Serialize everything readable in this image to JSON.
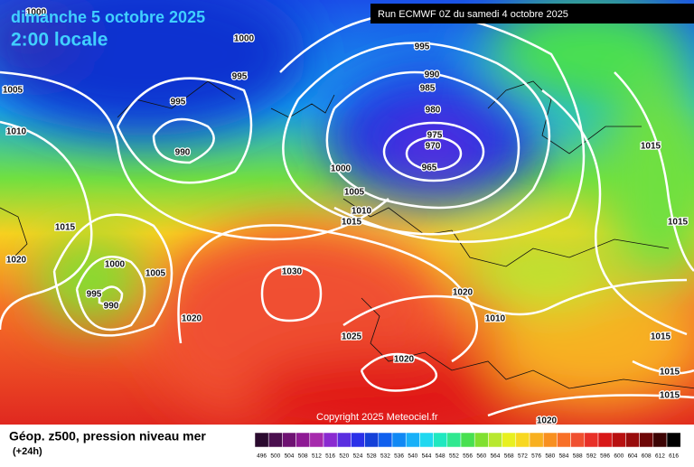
{
  "header": {
    "date": "dimanche 5 octobre 2025",
    "time": "2:00 locale",
    "run": "Run ECMWF 0Z du samedi 4 octobre 2025"
  },
  "copyright": "Copyright 2025 Meteociel.fr",
  "legend": {
    "title": "Géop. z500, pression niveau mer",
    "subtitle": "(+24h)",
    "scale": [
      {
        "value": 496,
        "color": "#2a0a2e"
      },
      {
        "value": 500,
        "color": "#4a0f4e"
      },
      {
        "value": 504,
        "color": "#6e1272"
      },
      {
        "value": 508,
        "color": "#8e1a94"
      },
      {
        "value": 512,
        "color": "#a62aac"
      },
      {
        "value": 516,
        "color": "#8a2ad0"
      },
      {
        "value": 520,
        "color": "#5a2ee0"
      },
      {
        "value": 524,
        "color": "#2a30e8"
      },
      {
        "value": 528,
        "color": "#1440d8"
      },
      {
        "value": 532,
        "color": "#1060ee"
      },
      {
        "value": 536,
        "color": "#1088f4"
      },
      {
        "value": 540,
        "color": "#18b0f8"
      },
      {
        "value": 544,
        "color": "#20d8f0"
      },
      {
        "value": 548,
        "color": "#20e8c0"
      },
      {
        "value": 552,
        "color": "#30e890"
      },
      {
        "value": 556,
        "color": "#48e050"
      },
      {
        "value": 560,
        "color": "#80e030"
      },
      {
        "value": 564,
        "color": "#b8e830"
      },
      {
        "value": 568,
        "color": "#e8f020"
      },
      {
        "value": 572,
        "color": "#f8d820"
      },
      {
        "value": 576,
        "color": "#f8b020"
      },
      {
        "value": 580,
        "color": "#f89020"
      },
      {
        "value": 584,
        "color": "#f87028"
      },
      {
        "value": 588,
        "color": "#f05030"
      },
      {
        "value": 592,
        "color": "#e83028"
      },
      {
        "value": 596,
        "color": "#d81818"
      },
      {
        "value": 600,
        "color": "#b81010"
      },
      {
        "value": 604,
        "color": "#980c0c"
      },
      {
        "value": 608,
        "color": "#6e0808"
      },
      {
        "value": 612,
        "color": "#3c0404"
      },
      {
        "value": 616,
        "color": "#000000"
      }
    ]
  },
  "isobars": [
    1000,
    1000,
    1005,
    995,
    995,
    990,
    1010,
    995,
    990,
    985,
    980,
    975,
    970,
    965,
    1000,
    1005,
    1010,
    1015,
    1015,
    1020,
    1000,
    1005,
    995,
    990,
    1030,
    1020,
    1020,
    1010,
    1025,
    1020,
    1015,
    1015,
    1015,
    1015,
    1015,
    1020
  ]
}
